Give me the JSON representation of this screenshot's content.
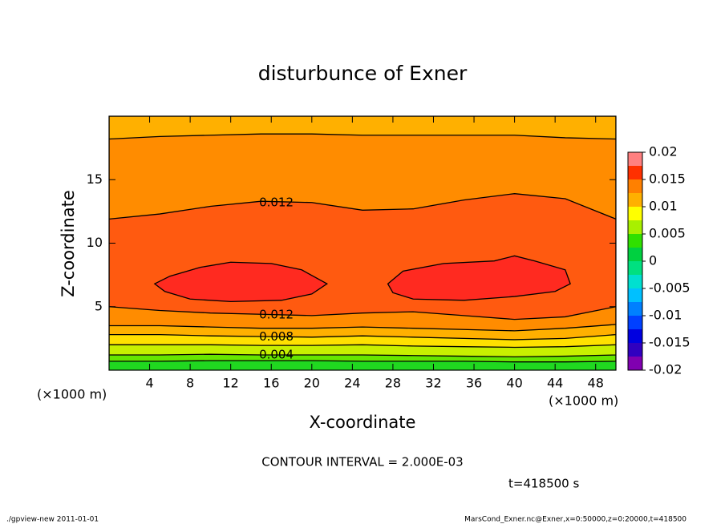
{
  "chart_data": {
    "type": "contour",
    "title": "disturbunce of Exner",
    "xlabel": "X-coordinate",
    "ylabel": "Z-coordinate",
    "x_unit": "(×1000 m)",
    "contour_interval": "CONTOUR INTERVAL = 2.000E-03",
    "time": "t=418500 s",
    "footer_left": "./gpview-new  2011-01-01",
    "footer_right": "MarsCond_Exner.nc@Exner,x=0:50000,z=0:20000,t=418500",
    "xlim": [
      0,
      50
    ],
    "ylim": [
      0,
      20
    ],
    "xticks": [
      4,
      8,
      12,
      16,
      20,
      24,
      28,
      32,
      36,
      40,
      44,
      48
    ],
    "yticks": [
      5,
      10,
      15
    ],
    "contours": [
      {
        "level": 0.002,
        "color": "#66e600",
        "x": [
          0,
          5,
          10,
          15,
          20,
          25,
          30,
          35,
          40,
          45,
          50,
          50,
          0
        ],
        "z": [
          0.7,
          0.7,
          0.75,
          0.75,
          0.75,
          0.7,
          0.7,
          0.7,
          0.65,
          0.65,
          0.7,
          20,
          20
        ]
      },
      {
        "level": 0.004,
        "color": "#c8f000",
        "x": [
          0,
          5,
          10,
          15,
          20,
          25,
          30,
          35,
          40,
          45,
          50,
          50,
          0
        ],
        "z": [
          1.2,
          1.2,
          1.25,
          1.2,
          1.2,
          1.2,
          1.15,
          1.1,
          1.05,
          1.1,
          1.2,
          20,
          20
        ]
      },
      {
        "level": 0.006,
        "color": "#ffe000",
        "x": [
          0,
          5,
          10,
          15,
          20,
          25,
          30,
          35,
          40,
          45,
          50,
          50,
          0
        ],
        "z": [
          2.0,
          2.0,
          2.0,
          1.95,
          1.95,
          2.0,
          1.9,
          1.85,
          1.8,
          1.85,
          2.0,
          20,
          20
        ]
      },
      {
        "level": 0.008,
        "color": "#ffb000",
        "x": [
          0,
          5,
          10,
          15,
          20,
          25,
          30,
          35,
          40,
          45,
          50,
          50,
          0
        ],
        "z": [
          2.8,
          2.8,
          2.7,
          2.65,
          2.6,
          2.7,
          2.6,
          2.5,
          2.4,
          2.5,
          2.8,
          20,
          20
        ]
      },
      {
        "level": 0.01,
        "color": "#ff8c00",
        "x": [
          0,
          5,
          10,
          15,
          20,
          25,
          30,
          35,
          40,
          45,
          50,
          50,
          45,
          40,
          35,
          30,
          25,
          20,
          15,
          10,
          5,
          0
        ],
        "z": [
          3.5,
          3.5,
          3.4,
          3.3,
          3.3,
          3.4,
          3.3,
          3.2,
          3.1,
          3.3,
          3.6,
          18.2,
          18.3,
          18.5,
          18.5,
          18.5,
          18.5,
          18.6,
          18.6,
          18.5,
          18.4,
          18.2
        ]
      },
      {
        "level": 0.012,
        "color": "#ff5a10",
        "x": [
          0,
          5,
          10,
          15,
          20,
          25,
          30,
          35,
          40,
          45,
          50,
          50,
          45,
          40,
          35,
          30,
          25,
          20,
          15,
          10,
          5,
          0
        ],
        "z": [
          5.0,
          4.7,
          4.5,
          4.4,
          4.3,
          4.5,
          4.6,
          4.3,
          4.0,
          4.2,
          5.0,
          11.9,
          13.5,
          13.9,
          13.4,
          12.7,
          12.6,
          13.2,
          13.3,
          12.9,
          12.3,
          11.9
        ]
      },
      {
        "level": 0.014,
        "color": "#ff2a20",
        "x": [
          4.5,
          6,
          9,
          12,
          16,
          19,
          21.5,
          20,
          17,
          12,
          8,
          5.5
        ],
        "z": [
          6.8,
          7.4,
          8.1,
          8.5,
          8.4,
          7.9,
          6.8,
          6.0,
          5.5,
          5.4,
          5.6,
          6.2
        ]
      },
      {
        "level": 0.014,
        "color": "#ff2a20",
        "x": [
          27.5,
          29,
          33,
          38,
          40,
          42,
          45,
          45.5,
          44,
          40,
          35,
          30,
          28
        ],
        "z": [
          6.8,
          7.8,
          8.4,
          8.6,
          9.0,
          8.6,
          7.9,
          6.8,
          6.2,
          5.8,
          5.5,
          5.6,
          6.1
        ]
      }
    ],
    "contour_labels": [
      {
        "value": 0.012,
        "x": 16.5,
        "z": 13.2
      },
      {
        "value": 0.012,
        "x": 16.5,
        "z": 4.35
      },
      {
        "value": 0.008,
        "x": 16.5,
        "z": 2.62
      },
      {
        "value": 0.004,
        "x": 16.5,
        "z": 1.2
      }
    ],
    "colorbar": {
      "levels": [
        -0.02,
        -0.0175,
        -0.015,
        -0.0125,
        -0.01,
        -0.0075,
        -0.005,
        -0.0025,
        0,
        0.0025,
        0.005,
        0.0075,
        0.01,
        0.0125,
        0.015,
        0.0175,
        0.02
      ],
      "colors": [
        "#8000b0",
        "#3000c0",
        "#0000e0",
        "#0040ff",
        "#0080ff",
        "#00c0ff",
        "#00e0d0",
        "#00e080",
        "#00d040",
        "#30e000",
        "#a8f000",
        "#ffff00",
        "#ffb000",
        "#ff8000",
        "#ff3000",
        "#ff8080"
      ],
      "ticks": [
        -0.02,
        -0.015,
        -0.01,
        -0.005,
        0,
        0.005,
        0.01,
        0.015,
        0.02
      ]
    }
  }
}
